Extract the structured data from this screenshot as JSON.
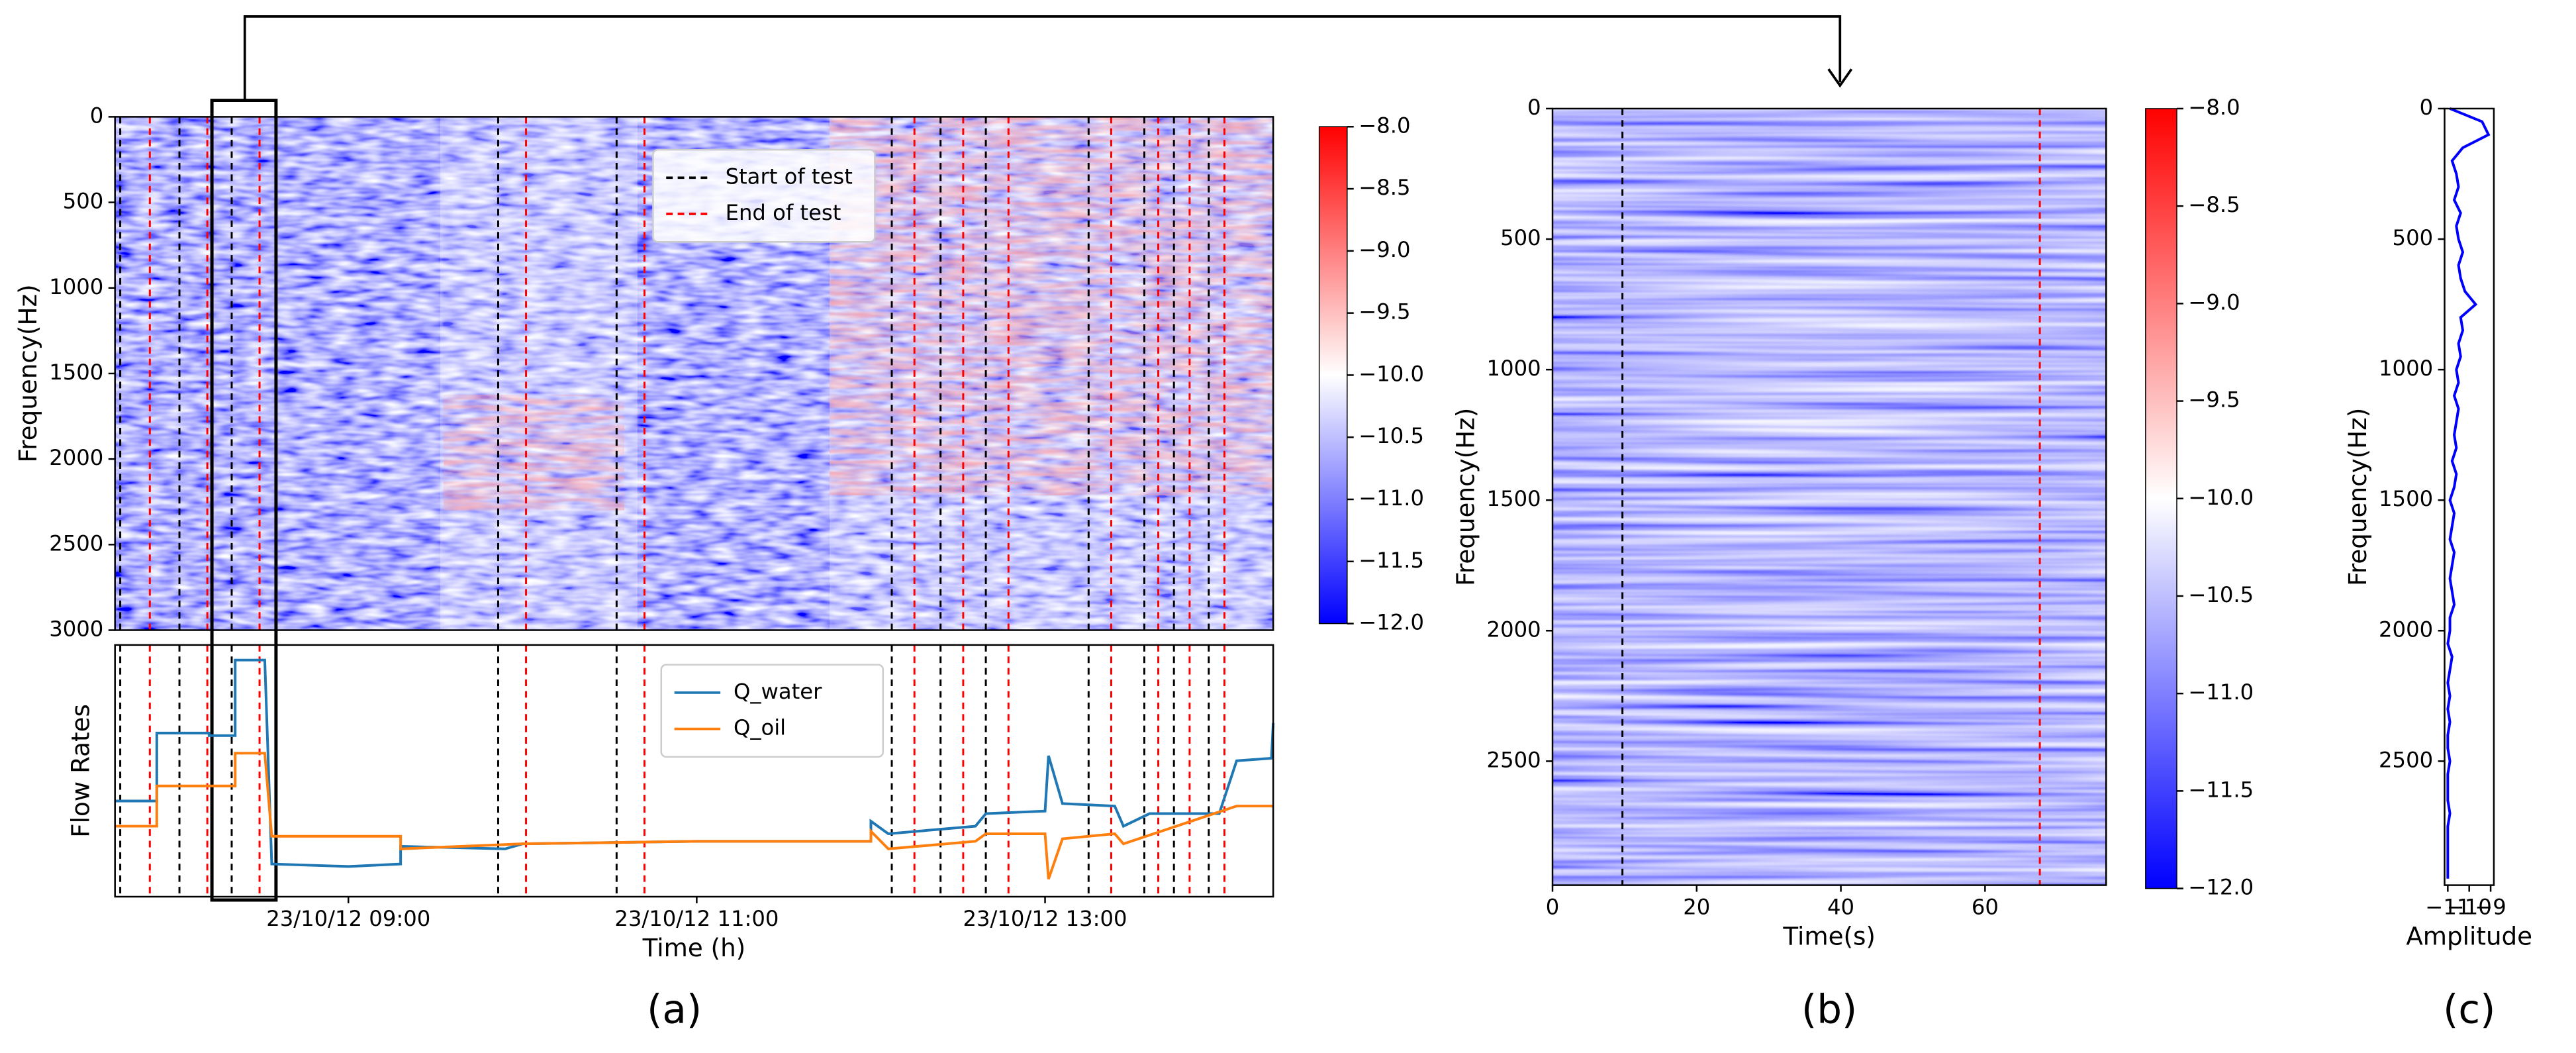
{
  "chart_data": [
    {
      "type": "heatmap",
      "ylabel": "Frequency(Hz)",
      "y_inverted": true,
      "xlim": [
        7.66,
        14.31
      ],
      "ylim": [
        0,
        3000
      ],
      "yticks": [
        0,
        500,
        1000,
        1500,
        2000,
        2500,
        3000
      ],
      "legend": "upper center",
      "series": [
        {
          "name": "Start of test",
          "color": "#000000",
          "x": [
            7.69,
            8.03,
            8.33,
            9.86,
            10.54,
            12.12,
            12.4,
            12.66,
            13.25,
            13.57,
            13.74,
            13.94
          ]
        },
        {
          "name": "End of test",
          "color": "#ff0000",
          "x": [
            7.86,
            8.19,
            8.49,
            10.02,
            10.7,
            12.25,
            12.53,
            12.79,
            13.38,
            13.65,
            13.83,
            14.03
          ]
        }
      ],
      "colorbar": {
        "lim": [
          -12,
          -8
        ],
        "ticks": [
          {
            "value": -12,
            "label": "−12.0"
          },
          {
            "value": -11.5,
            "label": "−11.5"
          },
          {
            "value": -11,
            "label": "−11.0"
          },
          {
            "value": -10.5,
            "label": "−10.5"
          },
          {
            "value": -10,
            "label": "−10.0"
          },
          {
            "value": -9.5,
            "label": "−9.5"
          },
          {
            "value": -9,
            "label": "−9.0"
          },
          {
            "value": -8.5,
            "label": "−8.5"
          },
          {
            "value": -8,
            "label": "−8.0"
          }
        ]
      }
    },
    {
      "type": "line",
      "xlabel": "Time (h)",
      "ylabel": "Flow Rates",
      "panel_label": "(a)",
      "xlim": [
        7.66,
        14.31
      ],
      "ylim": [
        0,
        10
      ],
      "xticks": [
        {
          "value": 9,
          "label": "23/10/12 09:00"
        },
        {
          "value": 11,
          "label": "23/10/12 11:00"
        },
        {
          "value": 13,
          "label": "23/10/12 13:00"
        }
      ],
      "legend": "upper center",
      "series": [
        {
          "name": "Q_water",
          "color": "#1f77b4",
          "x": [
            7.66,
            7.9,
            7.9,
            8.2,
            8.2,
            8.35,
            8.35,
            8.52,
            8.56,
            9.0,
            9.3,
            9.3,
            9.9,
            10.0,
            11.0,
            12.0,
            12.0,
            12.1,
            12.6,
            12.66,
            13.0,
            13.02,
            13.1,
            13.4,
            13.45,
            13.6,
            14.0,
            14.1,
            14.3,
            14.31
          ],
          "values": [
            3.8,
            3.8,
            6.5,
            6.5,
            6.4,
            6.4,
            9.4,
            9.4,
            1.3,
            1.2,
            1.3,
            2.0,
            1.9,
            2.1,
            2.2,
            2.2,
            3.0,
            2.5,
            2.8,
            3.3,
            3.4,
            5.6,
            3.7,
            3.6,
            2.8,
            3.3,
            3.3,
            5.4,
            5.5,
            6.9
          ]
        },
        {
          "name": "Q_oil",
          "color": "#ff7f0e",
          "x": [
            7.66,
            7.9,
            7.9,
            8.35,
            8.35,
            8.52,
            8.56,
            9.3,
            9.3,
            10.0,
            11.0,
            12.0,
            12.0,
            12.1,
            12.6,
            12.66,
            13.0,
            13.02,
            13.1,
            13.4,
            13.45,
            14.1,
            14.31
          ],
          "values": [
            2.8,
            2.8,
            4.4,
            4.4,
            5.7,
            5.7,
            2.4,
            2.4,
            1.9,
            2.1,
            2.2,
            2.2,
            2.6,
            1.9,
            2.2,
            2.5,
            2.5,
            0.7,
            2.3,
            2.5,
            2.1,
            3.6,
            3.6
          ]
        }
      ]
    },
    {
      "type": "heatmap",
      "xlabel": "Time(s)",
      "ylabel": "Frequency(Hz)",
      "panel_label": "(b)",
      "y_inverted": true,
      "xlim": [
        0,
        76.8
      ],
      "xticks": [
        0,
        20,
        40,
        60
      ],
      "ylim": [
        0,
        2975
      ],
      "yticks": [
        0,
        500,
        1000,
        1500,
        2000,
        2500
      ],
      "series": [
        {
          "color": "#000000",
          "x": [
            9.7
          ]
        },
        {
          "color": "#ff0000",
          "x": [
            67.6
          ]
        }
      ],
      "colorbar": {
        "lim": [
          -12,
          -8
        ],
        "ticks": [
          {
            "value": -12,
            "label": "−12.0"
          },
          {
            "value": -11.5,
            "label": "−11.5"
          },
          {
            "value": -11,
            "label": "−11.0"
          },
          {
            "value": -10.5,
            "label": "−10.5"
          },
          {
            "value": -10,
            "label": "−10.0"
          },
          {
            "value": -9.5,
            "label": "−9.5"
          },
          {
            "value": -9,
            "label": "−9.0"
          },
          {
            "value": -8.5,
            "label": "−8.5"
          },
          {
            "value": -8,
            "label": "−8.0"
          }
        ]
      }
    },
    {
      "type": "line",
      "xlabel": "Amplitude",
      "ylabel": "Frequency(Hz)",
      "panel_label": "(c)",
      "y_inverted": true,
      "xlim": [
        -11.15,
        -8.85
      ],
      "xticks": [
        {
          "value": -11,
          "label": "−11"
        },
        {
          "value": -10,
          "label": "−10"
        },
        {
          "value": -9,
          "label": "−9"
        }
      ],
      "ylim": [
        0,
        2975
      ],
      "yticks": [
        0,
        500,
        1000,
        1500,
        2000,
        2500
      ],
      "y": [
        0,
        50,
        100,
        150,
        200,
        250,
        300,
        350,
        400,
        450,
        500,
        550,
        600,
        650,
        700,
        750,
        800,
        850,
        900,
        950,
        1000,
        1050,
        1100,
        1150,
        1200,
        1250,
        1300,
        1350,
        1400,
        1450,
        1500,
        1550,
        1600,
        1650,
        1700,
        1750,
        1800,
        1850,
        1900,
        1950,
        2000,
        2050,
        2100,
        2150,
        2200,
        2250,
        2300,
        2350,
        2400,
        2450,
        2500,
        2550,
        2600,
        2650,
        2700,
        2750,
        2800,
        2850,
        2900,
        2950
      ],
      "series": [
        {
          "color": "#0000ff",
          "values": [
            -10.9,
            -9.4,
            -9.1,
            -10.3,
            -10.8,
            -10.6,
            -10.5,
            -10.7,
            -10.4,
            -10.6,
            -10.5,
            -10.3,
            -10.5,
            -10.4,
            -10.2,
            -9.7,
            -10.4,
            -10.3,
            -10.5,
            -10.4,
            -10.6,
            -10.5,
            -10.7,
            -10.5,
            -10.6,
            -10.7,
            -10.6,
            -10.8,
            -10.6,
            -10.7,
            -10.9,
            -10.7,
            -10.8,
            -10.9,
            -10.7,
            -10.8,
            -10.9,
            -10.8,
            -10.7,
            -10.9,
            -10.9,
            -11.0,
            -10.8,
            -10.9,
            -11.0,
            -10.9,
            -11.0,
            -10.9,
            -11.0,
            -11.0,
            -10.9,
            -11.0,
            -11.0,
            -11.0,
            -10.9,
            -11.0,
            -11.0,
            -11.0,
            -11.0,
            -11.0
          ]
        }
      ]
    }
  ]
}
